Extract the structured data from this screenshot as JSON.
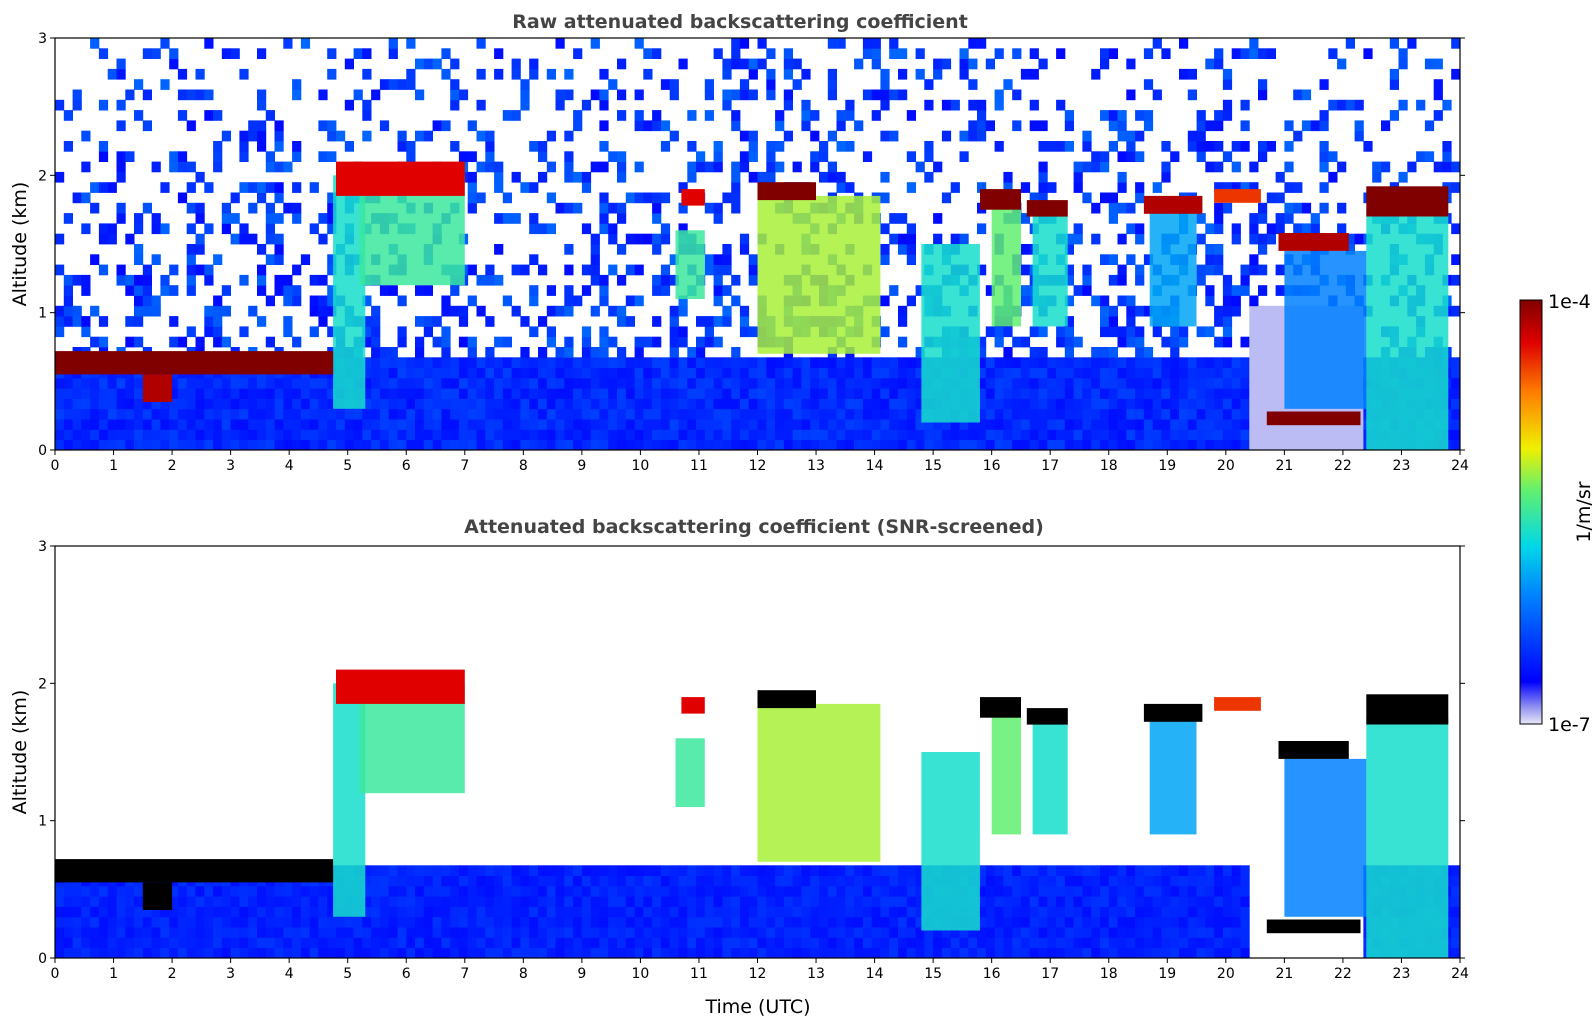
{
  "chart_data": [
    {
      "type": "heatmap",
      "title": "Raw attenuated backscattering coefficient",
      "xlabel": "",
      "ylabel": "Altitude (km)",
      "xlim": [
        0,
        24
      ],
      "ylim": [
        0,
        3
      ],
      "xticks": [
        "0",
        "1",
        "2",
        "3",
        "4",
        "5",
        "6",
        "7",
        "8",
        "9",
        "10",
        "11",
        "12",
        "13",
        "14",
        "15",
        "16",
        "17",
        "18",
        "19",
        "20",
        "21",
        "22",
        "23",
        "24"
      ],
      "yticks": [
        "0",
        "1",
        "2",
        "3"
      ],
      "noise": "full",
      "layers": [
        {
          "t0": 0.0,
          "t1": 4.75,
          "z0": 0.55,
          "z1": 0.72,
          "v": 1.0
        },
        {
          "t0": 1.5,
          "t1": 2.0,
          "z0": 0.35,
          "z1": 0.55,
          "v": 0.95
        },
        {
          "t0": 4.8,
          "t1": 7.0,
          "z0": 1.85,
          "z1": 2.1,
          "v": 0.9
        },
        {
          "t0": 10.7,
          "t1": 11.1,
          "z0": 1.78,
          "z1": 1.9,
          "v": 0.9
        },
        {
          "t0": 12.0,
          "t1": 13.0,
          "z0": 1.82,
          "z1": 1.95,
          "v": 1.0
        },
        {
          "t0": 15.8,
          "t1": 16.5,
          "z0": 1.75,
          "z1": 1.9,
          "v": 1.0
        },
        {
          "t0": 16.6,
          "t1": 17.3,
          "z0": 1.7,
          "z1": 1.82,
          "v": 1.0
        },
        {
          "t0": 18.6,
          "t1": 19.6,
          "z0": 1.72,
          "z1": 1.85,
          "v": 0.95
        },
        {
          "t0": 19.8,
          "t1": 20.6,
          "z0": 1.8,
          "z1": 1.9,
          "v": 0.85
        },
        {
          "t0": 20.9,
          "t1": 22.1,
          "z0": 1.45,
          "z1": 1.58,
          "v": 0.95
        },
        {
          "t0": 22.4,
          "t1": 23.8,
          "z0": 1.7,
          "z1": 1.92,
          "v": 1.0
        },
        {
          "t0": 20.7,
          "t1": 22.3,
          "z0": 0.18,
          "z1": 0.28,
          "v": 1.0
        }
      ],
      "curtains": [
        {
          "t0": 4.75,
          "t1": 5.3,
          "z0": 0.3,
          "z1": 2.0,
          "v": 0.45
        },
        {
          "t0": 5.2,
          "t1": 7.0,
          "z0": 1.2,
          "z1": 2.0,
          "v": 0.5
        },
        {
          "t0": 10.6,
          "t1": 11.1,
          "z0": 1.1,
          "z1": 1.6,
          "v": 0.5
        },
        {
          "t0": 12.0,
          "t1": 14.1,
          "z0": 0.7,
          "z1": 1.85,
          "v": 0.6
        },
        {
          "t0": 14.8,
          "t1": 15.8,
          "z0": 0.2,
          "z1": 1.5,
          "v": 0.45
        },
        {
          "t0": 16.0,
          "t1": 16.5,
          "z0": 0.9,
          "z1": 1.8,
          "v": 0.55
        },
        {
          "t0": 16.7,
          "t1": 17.3,
          "z0": 0.9,
          "z1": 1.7,
          "v": 0.45
        },
        {
          "t0": 18.7,
          "t1": 19.5,
          "z0": 0.9,
          "z1": 1.75,
          "v": 0.35
        },
        {
          "t0": 21.0,
          "t1": 22.4,
          "z0": 0.3,
          "z1": 1.45,
          "v": 0.3
        },
        {
          "t0": 22.4,
          "t1": 23.8,
          "z0": 0.0,
          "z1": 1.75,
          "v": 0.45
        }
      ]
    },
    {
      "type": "heatmap",
      "title": "Attenuated backscattering coefficient (SNR-screened)",
      "xlabel": "Time (UTC)",
      "ylabel": "Altitude (km)",
      "xlim": [
        0,
        24
      ],
      "ylim": [
        0,
        3
      ],
      "xticks": [
        "0",
        "1",
        "2",
        "3",
        "4",
        "5",
        "6",
        "7",
        "8",
        "9",
        "10",
        "11",
        "12",
        "13",
        "14",
        "15",
        "16",
        "17",
        "18",
        "19",
        "20",
        "21",
        "22",
        "23",
        "24"
      ],
      "yticks": [
        "0",
        "1",
        "2",
        "3"
      ],
      "noise": "screened",
      "saturated_color": "#000000",
      "layers": [
        {
          "t0": 0.0,
          "t1": 4.75,
          "z0": 0.55,
          "z1": 0.72,
          "v": 1.0
        },
        {
          "t0": 1.5,
          "t1": 2.0,
          "z0": 0.35,
          "z1": 0.55,
          "v": 0.95
        },
        {
          "t0": 4.8,
          "t1": 7.0,
          "z0": 1.85,
          "z1": 2.1,
          "v": 0.9
        },
        {
          "t0": 10.7,
          "t1": 11.1,
          "z0": 1.78,
          "z1": 1.9,
          "v": 0.9
        },
        {
          "t0": 12.0,
          "t1": 13.0,
          "z0": 1.82,
          "z1": 1.95,
          "v": 1.0
        },
        {
          "t0": 15.8,
          "t1": 16.5,
          "z0": 1.75,
          "z1": 1.9,
          "v": 1.0
        },
        {
          "t0": 16.6,
          "t1": 17.3,
          "z0": 1.7,
          "z1": 1.82,
          "v": 1.0
        },
        {
          "t0": 18.6,
          "t1": 19.6,
          "z0": 1.72,
          "z1": 1.85,
          "v": 0.95
        },
        {
          "t0": 19.8,
          "t1": 20.6,
          "z0": 1.8,
          "z1": 1.9,
          "v": 0.85
        },
        {
          "t0": 20.9,
          "t1": 22.1,
          "z0": 1.45,
          "z1": 1.58,
          "v": 0.95
        },
        {
          "t0": 22.4,
          "t1": 23.8,
          "z0": 1.7,
          "z1": 1.92,
          "v": 1.0
        },
        {
          "t0": 20.7,
          "t1": 22.3,
          "z0": 0.18,
          "z1": 0.28,
          "v": 1.0
        }
      ],
      "curtains": [
        {
          "t0": 4.75,
          "t1": 5.3,
          "z0": 0.3,
          "z1": 2.0,
          "v": 0.45
        },
        {
          "t0": 5.2,
          "t1": 7.0,
          "z0": 1.2,
          "z1": 2.0,
          "v": 0.5
        },
        {
          "t0": 10.6,
          "t1": 11.1,
          "z0": 1.1,
          "z1": 1.6,
          "v": 0.5
        },
        {
          "t0": 12.0,
          "t1": 14.1,
          "z0": 0.7,
          "z1": 1.85,
          "v": 0.6
        },
        {
          "t0": 14.8,
          "t1": 15.8,
          "z0": 0.2,
          "z1": 1.5,
          "v": 0.45
        },
        {
          "t0": 16.0,
          "t1": 16.5,
          "z0": 0.9,
          "z1": 1.8,
          "v": 0.55
        },
        {
          "t0": 16.7,
          "t1": 17.3,
          "z0": 0.9,
          "z1": 1.7,
          "v": 0.45
        },
        {
          "t0": 18.7,
          "t1": 19.5,
          "z0": 0.9,
          "z1": 1.75,
          "v": 0.35
        },
        {
          "t0": 21.0,
          "t1": 22.4,
          "z0": 0.3,
          "z1": 1.45,
          "v": 0.3
        },
        {
          "t0": 22.4,
          "t1": 23.8,
          "z0": 0.0,
          "z1": 1.75,
          "v": 0.45
        }
      ]
    }
  ],
  "colorbar": {
    "label": "1/m/sr",
    "max_label": "1e-4",
    "min_label": "1e-7",
    "colormap": "jet",
    "scale": "log"
  }
}
